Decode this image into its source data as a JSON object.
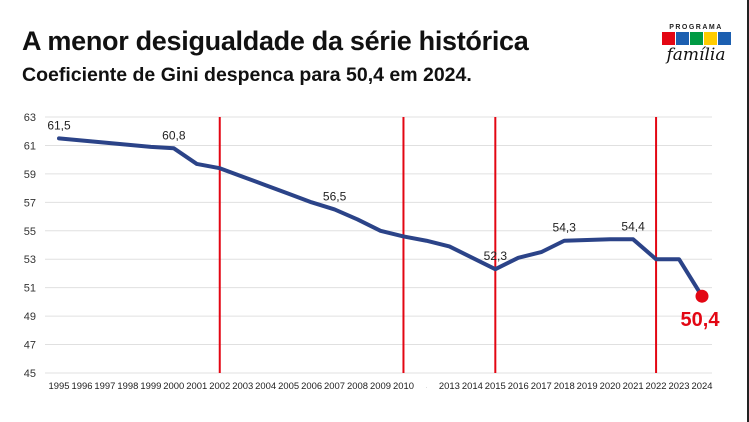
{
  "header": {
    "title": "A menor desigualdade da série histórica",
    "subtitle": "Coeficiente de Gini despenca para 50,4 em 2024."
  },
  "logo": {
    "text_top": "PROGRAMA",
    "text_mid": "BOLSA",
    "text_bottom": "família"
  },
  "colors": {
    "line": "#2b4388",
    "highlight": "#e30613",
    "marker_lines": "#e30613",
    "grid": "#e0e0e0"
  },
  "chart_data": {
    "type": "line",
    "categories": [
      "1995",
      "1996",
      "1997",
      "1998",
      "1999",
      "2000",
      "2001",
      "2002",
      "2003",
      "2004",
      "2005",
      "2006",
      "2007",
      "2008",
      "2009",
      "2010",
      "",
      "2013",
      "2014",
      "2015",
      "2016",
      "2017",
      "2018",
      "2019",
      "2020",
      "2021",
      "2022",
      "2023",
      "2024"
    ],
    "values": [
      61.5,
      61.35,
      61.2,
      61.05,
      60.9,
      60.8,
      59.7,
      59.4,
      58.8,
      58.2,
      57.6,
      57.0,
      56.5,
      55.8,
      55.0,
      54.6,
      54.3,
      53.9,
      53.1,
      52.3,
      53.1,
      53.5,
      54.3,
      54.35,
      54.4,
      54.4,
      53.0,
      53.0,
      50.4
    ],
    "data_labels": [
      {
        "category": "1995",
        "text": "61,5"
      },
      {
        "category": "2000",
        "text": "60,8"
      },
      {
        "category": "2007",
        "text": "56,5"
      },
      {
        "category": "2015",
        "text": "52,3"
      },
      {
        "category": "2018",
        "text": "54,3"
      },
      {
        "category": "2021",
        "text": "54,4"
      },
      {
        "category": "2024",
        "text": "50,4",
        "highlight": true
      }
    ],
    "vertical_markers": [
      "2002",
      "2010",
      "2015",
      "2022"
    ],
    "yticks": [
      "45",
      "47",
      "49",
      "51",
      "53",
      "55",
      "57",
      "59",
      "61",
      "63"
    ],
    "ylim": [
      45,
      63
    ],
    "grid": true,
    "legend": "none",
    "xlabel": "",
    "ylabel": "",
    "title": ""
  }
}
